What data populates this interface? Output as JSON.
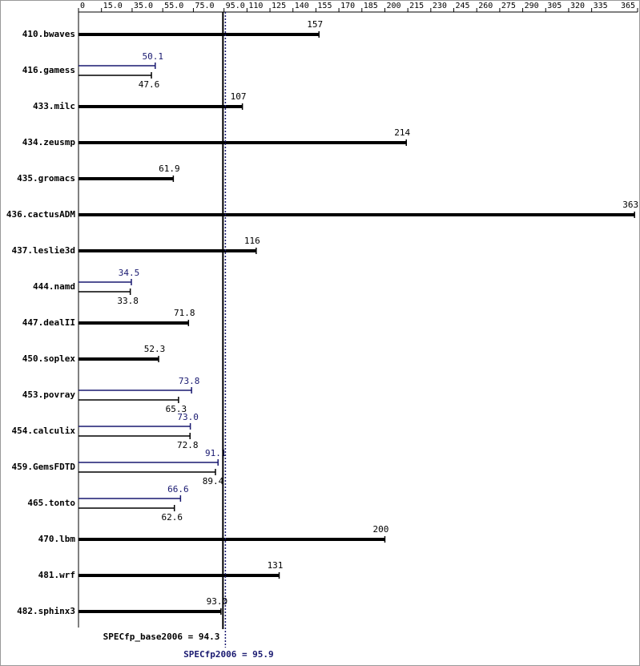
{
  "chart_data": {
    "type": "bar",
    "orientation": "horizontal",
    "categories": [
      "410.bwaves",
      "416.gamess",
      "433.milc",
      "434.zeusmp",
      "435.gromacs",
      "436.cactusADM",
      "437.leslie3d",
      "444.namd",
      "447.dealII",
      "450.soplex",
      "453.povray",
      "454.calculix",
      "459.GemsFDTD",
      "465.tonto",
      "470.lbm",
      "481.wrf",
      "482.sphinx3"
    ],
    "series": [
      {
        "color": "#191970",
        "values": [
          null,
          50.1,
          null,
          null,
          null,
          null,
          null,
          34.5,
          null,
          null,
          73.8,
          73.0,
          91.1,
          66.6,
          null,
          null,
          null
        ],
        "value_labels": [
          null,
          "50.1",
          null,
          null,
          null,
          null,
          null,
          "34.5",
          null,
          null,
          "73.8",
          "73.0",
          "91.1",
          "66.6",
          null,
          null,
          null
        ]
      },
      {
        "color": "#000000",
        "values": [
          157,
          47.6,
          107,
          214,
          61.9,
          363,
          116,
          33.8,
          71.8,
          52.3,
          65.3,
          72.8,
          89.4,
          62.6,
          200,
          131,
          93.0
        ],
        "value_labels": [
          "157",
          "47.6",
          "107",
          "214",
          "61.9",
          "363",
          "116",
          "33.8",
          "71.8",
          "52.3",
          "65.3",
          "72.8",
          "89.4",
          "62.6",
          "200",
          "131",
          "93.0"
        ]
      }
    ],
    "xlim": [
      0,
      365
    ],
    "xticks": [
      0,
      {
        "value": 15,
        "label": "15.0"
      },
      {
        "value": 35,
        "label": "35.0"
      },
      {
        "value": 55,
        "label": "55.0"
      },
      {
        "value": 75,
        "label": "75.0"
      },
      {
        "value": 95,
        "label": "95.0"
      },
      110,
      125,
      140,
      155,
      170,
      185,
      200,
      215,
      230,
      245,
      260,
      275,
      290,
      305,
      320,
      335,
      365
    ],
    "reference_lines": [
      {
        "value": 94.3,
        "label": "SPECfp_base2006 = 94.3",
        "color": "#000000"
      },
      {
        "value": 95.9,
        "label": "SPECfp2006 = 95.9",
        "color": "#191970"
      }
    ]
  }
}
